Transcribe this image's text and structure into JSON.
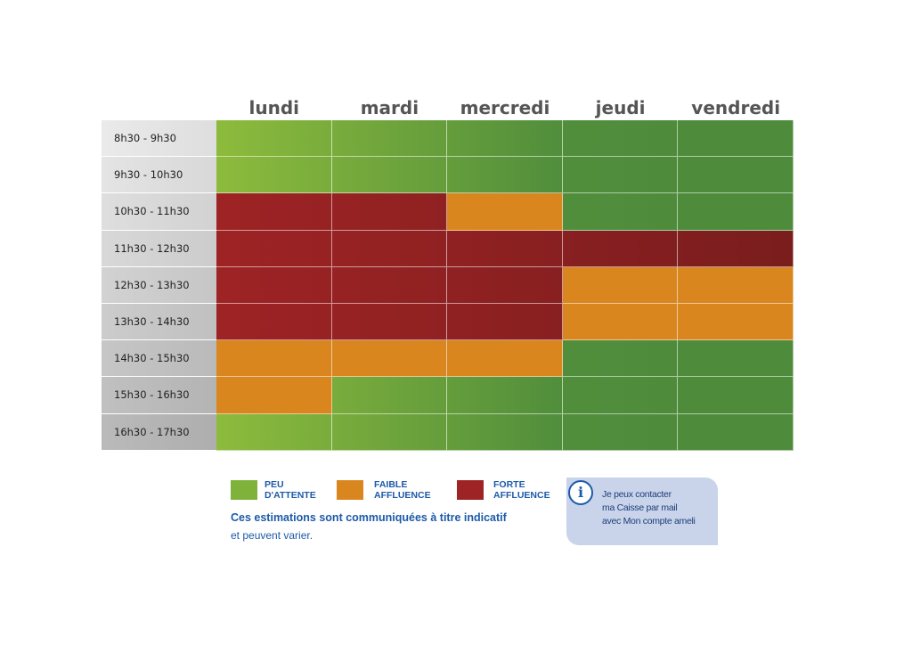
{
  "chart_data": {
    "type": "heatmap",
    "title": "",
    "days": [
      "lundi",
      "mardi",
      "mercredi",
      "jeudi",
      "vendredi"
    ],
    "time_slots": [
      "8h30 - 9h30",
      "9h30 - 10h30",
      "10h30 - 11h30",
      "11h30 - 12h30",
      "12h30 - 13h30",
      "13h30 - 14h30",
      "14h30 - 15h30",
      "15h30 - 16h30",
      "16h30 - 17h30"
    ],
    "levels": [
      "PEU D'ATTENTE",
      "FAIBLE AFFLUENCE",
      "FORTE AFFLUENCE"
    ],
    "values": [
      [
        "peu",
        "peu",
        "peu",
        "peu",
        "peu"
      ],
      [
        "peu",
        "peu",
        "peu",
        "peu",
        "peu"
      ],
      [
        "forte",
        "forte",
        "faible",
        "peu",
        "peu"
      ],
      [
        "forte",
        "forte",
        "forte",
        "forte",
        "forte"
      ],
      [
        "forte",
        "forte",
        "forte",
        "faible",
        "faible"
      ],
      [
        "forte",
        "forte",
        "forte",
        "faible",
        "faible"
      ],
      [
        "faible",
        "faible",
        "faible",
        "peu",
        "peu"
      ],
      [
        "faible",
        "peu",
        "peu",
        "peu",
        "peu"
      ],
      [
        "peu",
        "peu",
        "peu",
        "peu",
        "peu"
      ]
    ],
    "colors": {
      "peu_light": "#8dbb3c",
      "peu_dark": "#4e8c3c",
      "faible": "#d9861f",
      "forte": "#9e2325",
      "forte_dark": "#7a1d1d"
    }
  },
  "legend": [
    {
      "key": "peu",
      "label": "PEU\nD'ATTENTE",
      "color": "#7fb23a"
    },
    {
      "key": "faible",
      "label": "FAIBLE\nAFFLUENCE",
      "color": "#d9861f"
    },
    {
      "key": "forte",
      "label": "FORTE\nAFFLUENCE",
      "color": "#9e2325"
    }
  ],
  "note": {
    "main": "Ces estimations sont communiquées à titre indicatif",
    "sub": "et peuvent varier."
  },
  "info": {
    "icon": "info-icon",
    "lines": [
      "Je peux contacter",
      "ma Caisse par mail",
      "avec Mon compte ameli"
    ]
  }
}
